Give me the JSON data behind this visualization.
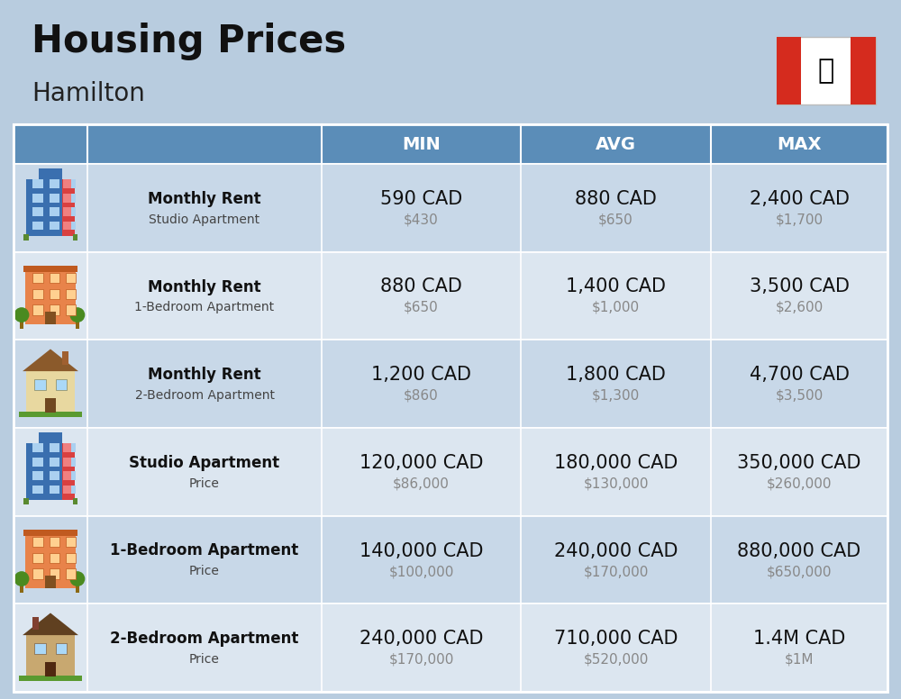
{
  "title": "Housing Prices",
  "subtitle": "Hamilton",
  "bg_color": "#b8ccdf",
  "header_bg_color": "#5b8db8",
  "header_text_color": "#ffffff",
  "row_bg_colors": [
    "#c8d8e8",
    "#dce6f0"
  ],
  "col_headers": [
    "MIN",
    "AVG",
    "MAX"
  ],
  "rows": [
    {
      "label_bold": "Monthly Rent",
      "label_sub": "Studio Apartment",
      "icon_type": "studio_blue",
      "min_cad": "590 CAD",
      "min_usd": "$430",
      "avg_cad": "880 CAD",
      "avg_usd": "$650",
      "max_cad": "2,400 CAD",
      "max_usd": "$1,700"
    },
    {
      "label_bold": "Monthly Rent",
      "label_sub": "1-Bedroom Apartment",
      "icon_type": "apartment_orange",
      "min_cad": "880 CAD",
      "min_usd": "$650",
      "avg_cad": "1,400 CAD",
      "avg_usd": "$1,000",
      "max_cad": "3,500 CAD",
      "max_usd": "$2,600"
    },
    {
      "label_bold": "Monthly Rent",
      "label_sub": "2-Bedroom Apartment",
      "icon_type": "house_beige",
      "min_cad": "1,200 CAD",
      "min_usd": "$860",
      "avg_cad": "1,800 CAD",
      "avg_usd": "$1,300",
      "max_cad": "4,700 CAD",
      "max_usd": "$3,500"
    },
    {
      "label_bold": "Studio Apartment",
      "label_sub": "Price",
      "icon_type": "studio_blue",
      "min_cad": "120,000 CAD",
      "min_usd": "$86,000",
      "avg_cad": "180,000 CAD",
      "avg_usd": "$130,000",
      "max_cad": "350,000 CAD",
      "max_usd": "$260,000"
    },
    {
      "label_bold": "1-Bedroom Apartment",
      "label_sub": "Price",
      "icon_type": "apartment_orange",
      "min_cad": "140,000 CAD",
      "min_usd": "$100,000",
      "avg_cad": "240,000 CAD",
      "avg_usd": "$170,000",
      "max_cad": "880,000 CAD",
      "max_usd": "$650,000"
    },
    {
      "label_bold": "2-Bedroom Apartment",
      "label_sub": "Price",
      "icon_type": "house_brown",
      "min_cad": "240,000 CAD",
      "min_usd": "$170,000",
      "avg_cad": "710,000 CAD",
      "avg_usd": "$520,000",
      "max_cad": "1.4M CAD",
      "max_usd": "$1M"
    }
  ],
  "title_fontsize": 30,
  "subtitle_fontsize": 20,
  "header_fontsize": 14,
  "cell_cad_fontsize": 15,
  "cell_usd_fontsize": 11,
  "label_bold_fontsize": 12,
  "label_sub_fontsize": 10
}
